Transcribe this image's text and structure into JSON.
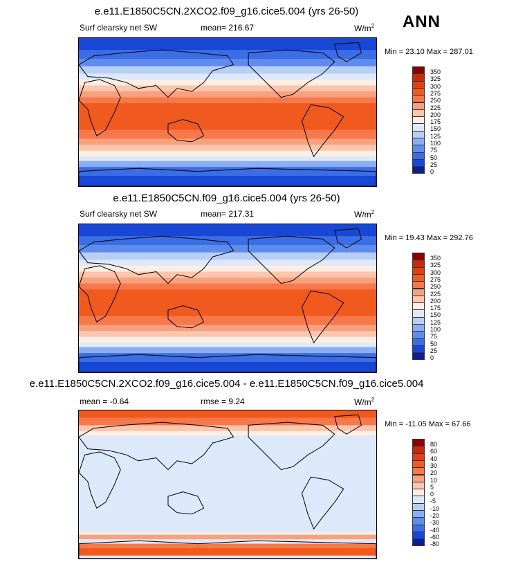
{
  "season": "ANN",
  "chart_data": [
    {
      "type": "heatmap",
      "title": "e.e11.E1850C5CN.2XCO2.f09_g16.cice5.004 (yrs 26-50)",
      "variable": "Surf clearsky net SW",
      "mean_label": "mean= 216.67",
      "units": "W/m",
      "units_sup": "2",
      "min": 23.1,
      "max": 287.01,
      "min_max_label": "Min =  23.10 Max = 287.01",
      "levels": [
        "350",
        "325",
        "300",
        "275",
        "250",
        "225",
        "200",
        "175",
        "150",
        "125",
        "100",
        "75",
        "50",
        "25",
        "0"
      ],
      "colors": [
        "#8b0000",
        "#c42a0b",
        "#de4110",
        "#f05a1e",
        "#f7784a",
        "#f9a07e",
        "#fbc6ad",
        "#fdeee3",
        "#dde9fa",
        "#b7cff7",
        "#8aaef1",
        "#5f8cec",
        "#3a6de6",
        "#1747d4",
        "#0a1f96"
      ]
    },
    {
      "type": "heatmap",
      "title": "e.e11.E1850C5CN.f09_g16.cice5.004 (yrs 26-50)",
      "variable": "Surf clearsky net SW",
      "mean_label": "mean= 217.31",
      "units": "W/m",
      "units_sup": "2",
      "min": 19.43,
      "max": 292.76,
      "min_max_label": "Min =  19.43 Max = 292.76",
      "levels": [
        "350",
        "325",
        "300",
        "275",
        "250",
        "225",
        "200",
        "175",
        "150",
        "125",
        "100",
        "75",
        "50",
        "25",
        "0"
      ],
      "colors": [
        "#8b0000",
        "#c42a0b",
        "#de4110",
        "#f05a1e",
        "#f7784a",
        "#f9a07e",
        "#fbc6ad",
        "#fdeee3",
        "#dde9fa",
        "#b7cff7",
        "#8aaef1",
        "#5f8cec",
        "#3a6de6",
        "#1747d4",
        "#0a1f96"
      ]
    },
    {
      "type": "heatmap",
      "title": "e.e11.E1850C5CN.2XCO2.f09_g16.cice5.004 - e.e11.E1850C5CN.f09_g16.cice5.004",
      "mean_label": "mean =  -0.64",
      "rmse_label": "rmse =  9.24",
      "units": "W/m",
      "units_sup": "2",
      "min": -11.05,
      "max": 67.66,
      "min_max_label": "Min = -11.05 Max =  67.66",
      "levels": [
        "80",
        "60",
        "40",
        "30",
        "20",
        "10",
        "5",
        "0",
        "-5",
        "-10",
        "-20",
        "-30",
        "-40",
        "-60",
        "-80"
      ],
      "colors": [
        "#8b0000",
        "#c42a0b",
        "#de4110",
        "#f05a1e",
        "#f7784a",
        "#f9a07e",
        "#fbc6ad",
        "#fdeee3",
        "#dde9fa",
        "#b7cff7",
        "#8aaef1",
        "#5f8cec",
        "#3a6de6",
        "#1747d4",
        "#0a1f96"
      ]
    }
  ]
}
